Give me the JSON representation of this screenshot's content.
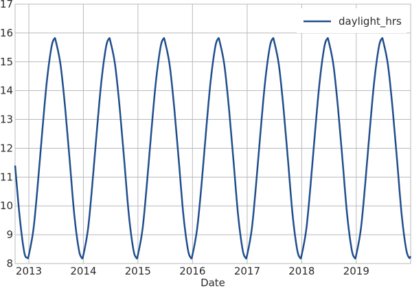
{
  "chart_data": {
    "type": "line",
    "title": "",
    "xlabel": "Date",
    "ylabel": "",
    "xlim": [
      "2012-10-01",
      "2019-12-31"
    ],
    "ylim": [
      8,
      17
    ],
    "y_ticks": [
      "8",
      "9",
      "10",
      "11",
      "12",
      "13",
      "14",
      "15",
      "16",
      "17"
    ],
    "x_ticks": [
      {
        "date": "2013-01-01",
        "label": "2013"
      },
      {
        "date": "2014-01-01",
        "label": "2014"
      },
      {
        "date": "2015-01-01",
        "label": "2015"
      },
      {
        "date": "2016-01-01",
        "label": "2016"
      },
      {
        "date": "2017-01-01",
        "label": "2017"
      },
      {
        "date": "2018-01-01",
        "label": "2018"
      },
      {
        "date": "2019-01-01",
        "label": "2019"
      }
    ],
    "grid": true,
    "legend_position": "top-right",
    "series": [
      {
        "name": "daylight_hrs",
        "color": "#1f4e8c",
        "x": [
          "2012-10-01",
          "2012-11-01",
          "2012-12-01",
          "2012-12-21",
          "2013-01-01",
          "2013-02-01",
          "2013-03-01",
          "2013-04-01",
          "2013-05-01",
          "2013-06-01",
          "2013-06-21",
          "2013-07-01",
          "2013-08-01",
          "2013-09-01",
          "2013-10-01",
          "2013-11-01",
          "2013-12-01",
          "2013-12-21",
          "2014-01-01",
          "2014-02-01",
          "2014-03-01",
          "2014-04-01",
          "2014-05-01",
          "2014-06-01",
          "2014-06-21",
          "2014-07-01",
          "2014-08-01",
          "2014-09-01",
          "2014-10-01",
          "2014-11-01",
          "2014-12-01",
          "2014-12-21",
          "2015-01-01",
          "2015-02-01",
          "2015-03-01",
          "2015-04-01",
          "2015-05-01",
          "2015-06-01",
          "2015-06-21",
          "2015-07-01",
          "2015-08-01",
          "2015-09-01",
          "2015-10-01",
          "2015-11-01",
          "2015-12-01",
          "2015-12-21",
          "2016-01-01",
          "2016-02-01",
          "2016-03-01",
          "2016-04-01",
          "2016-05-01",
          "2016-06-01",
          "2016-06-21",
          "2016-07-01",
          "2016-08-01",
          "2016-09-01",
          "2016-10-01",
          "2016-11-01",
          "2016-12-01",
          "2016-12-21",
          "2017-01-01",
          "2017-02-01",
          "2017-03-01",
          "2017-04-01",
          "2017-05-01",
          "2017-06-01",
          "2017-06-21",
          "2017-07-01",
          "2017-08-01",
          "2017-09-01",
          "2017-10-01",
          "2017-11-01",
          "2017-12-01",
          "2017-12-21",
          "2018-01-01",
          "2018-02-01",
          "2018-03-01",
          "2018-04-01",
          "2018-05-01",
          "2018-06-01",
          "2018-06-21",
          "2018-07-01",
          "2018-08-01",
          "2018-09-01",
          "2018-10-01",
          "2018-11-01",
          "2018-12-01",
          "2018-12-21",
          "2019-01-01",
          "2019-02-01",
          "2019-03-01",
          "2019-04-01",
          "2019-05-01",
          "2019-06-01",
          "2019-06-21",
          "2019-07-01",
          "2019-08-01",
          "2019-09-01",
          "2019-10-01",
          "2019-11-01",
          "2019-12-01",
          "2019-12-21",
          "2019-12-31"
        ],
        "y": [
          11.4,
          9.6,
          8.4,
          8.2,
          8.3,
          9.2,
          10.7,
          12.6,
          14.3,
          15.5,
          15.8,
          15.7,
          14.9,
          13.4,
          11.6,
          9.7,
          8.5,
          8.2,
          8.3,
          9.2,
          10.7,
          12.6,
          14.3,
          15.5,
          15.8,
          15.7,
          14.9,
          13.4,
          11.6,
          9.7,
          8.5,
          8.2,
          8.3,
          9.2,
          10.7,
          12.6,
          14.3,
          15.5,
          15.8,
          15.7,
          14.9,
          13.4,
          11.6,
          9.7,
          8.5,
          8.2,
          8.3,
          9.2,
          10.7,
          12.6,
          14.3,
          15.5,
          15.8,
          15.7,
          14.9,
          13.4,
          11.6,
          9.7,
          8.5,
          8.2,
          8.3,
          9.2,
          10.7,
          12.6,
          14.3,
          15.5,
          15.8,
          15.7,
          14.9,
          13.4,
          11.6,
          9.7,
          8.5,
          8.2,
          8.3,
          9.2,
          10.7,
          12.6,
          14.3,
          15.5,
          15.8,
          15.7,
          14.9,
          13.4,
          11.6,
          9.7,
          8.5,
          8.2,
          8.3,
          9.2,
          10.7,
          12.6,
          14.3,
          15.5,
          15.8,
          15.7,
          14.9,
          13.4,
          11.6,
          9.7,
          8.5,
          8.2,
          8.25
        ]
      }
    ]
  }
}
